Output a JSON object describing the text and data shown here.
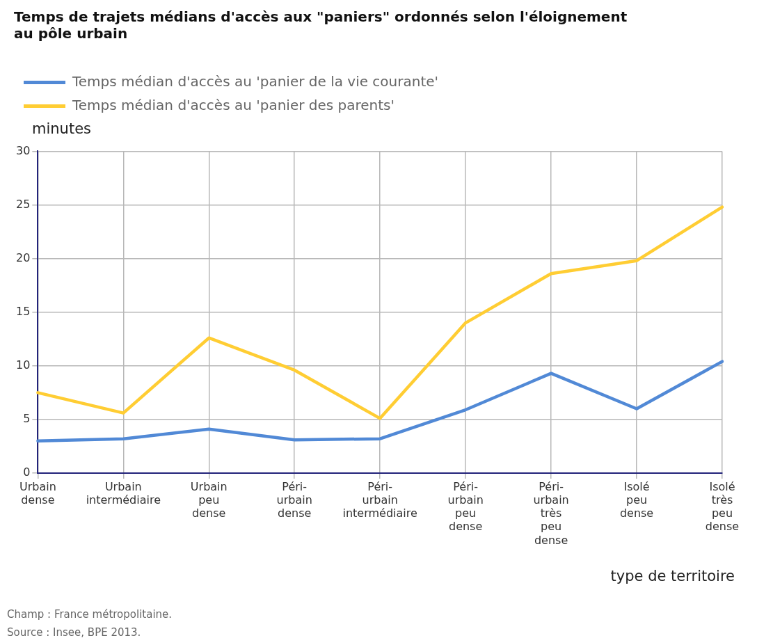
{
  "chart_data": {
    "type": "line",
    "title": "Temps de trajets médians d'accès aux \"paniers\" ordonnés selon l'éloignement au pôle urbain",
    "xlabel": "type de territoire",
    "ylabel": "minutes",
    "categories": [
      "Urbain dense",
      "Urbain intermédiaire",
      "Urbain peu dense",
      "Péri-urbain dense",
      "Péri-urbain intermédiaire",
      "Péri-urbain peu dense",
      "Péri-urbain très peu dense",
      "Isolé peu dense",
      "Isolé très peu dense"
    ],
    "series": [
      {
        "name": "Temps médian d'accès au 'panier de la vie courante'",
        "color": "#5189d6",
        "values": [
          3.0,
          3.2,
          4.1,
          3.1,
          3.2,
          5.9,
          9.3,
          6.0,
          10.4
        ]
      },
      {
        "name": "Temps médian d'accès au 'panier des parents'",
        "color": "#ffcd33",
        "values": [
          7.5,
          5.6,
          12.6,
          9.6,
          5.1,
          14.0,
          18.6,
          19.8,
          24.8
        ]
      }
    ],
    "ylim": [
      0,
      30
    ],
    "yticks": [
      0,
      5,
      10,
      15,
      20,
      25,
      30
    ],
    "grid": true,
    "legend": "top left",
    "marker": "none",
    "line_style": "solid",
    "annotations": [
      "Champ : France métropolitaine.",
      "Source : Insee, BPE 2013."
    ]
  }
}
